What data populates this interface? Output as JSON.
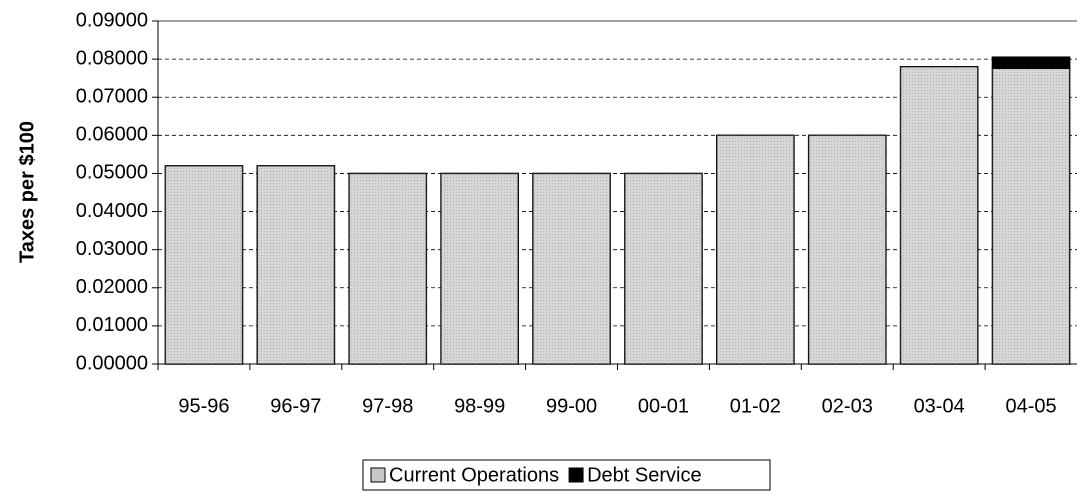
{
  "chart_data": {
    "type": "stacked_bar",
    "y_label": "Taxes per $100",
    "categories": [
      "95-96",
      "96-97",
      "97-98",
      "98-99",
      "99-00",
      "00-01",
      "01-02",
      "02-03",
      "03-04",
      "04-05"
    ],
    "series": [
      {
        "name": "Current Operations",
        "color": "#c8c8c8",
        "values": [
          0.052,
          0.052,
          0.05,
          0.05,
          0.05,
          0.05,
          0.06,
          0.06,
          0.078,
          0.0776
        ]
      },
      {
        "name": "Debt Service",
        "color": "#000000",
        "values": [
          0,
          0,
          0,
          0,
          0,
          0,
          0,
          0,
          0,
          0.0029
        ]
      }
    ],
    "ylim": [
      0,
      0.09
    ],
    "yticks": [
      {
        "value": 0,
        "label": "0.00000"
      },
      {
        "value": 0.01,
        "label": "0.01000"
      },
      {
        "value": 0.02,
        "label": "0.02000"
      },
      {
        "value": 0.03,
        "label": "0.03000"
      },
      {
        "value": 0.04,
        "label": "0.04000"
      },
      {
        "value": 0.05,
        "label": "0.05000"
      },
      {
        "value": 0.06,
        "label": "0.06000"
      },
      {
        "value": 0.07,
        "label": "0.07000"
      },
      {
        "value": 0.08,
        "label": "0.08000"
      },
      {
        "value": 0.09,
        "label": "0.09000"
      }
    ],
    "grid": true,
    "legend": "bottom"
  }
}
